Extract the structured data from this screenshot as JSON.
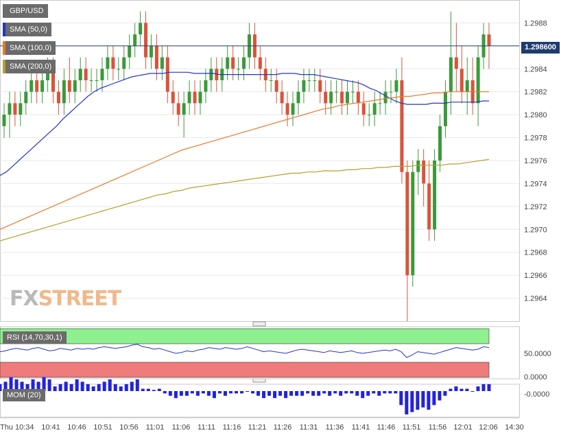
{
  "symbol": "GBP/USD",
  "last_price_label": "1.298600",
  "watermark": {
    "part1": "FX",
    "part2": "STREET"
  },
  "legends": {
    "sma50": "SMA (50,0)",
    "sma100": "SMA (100,0)",
    "sma200": "SMA (200,0)",
    "rsi": "RSI (14,70,30,1)",
    "mom": "MOM (20)"
  },
  "colors": {
    "up": "#3a9a3a",
    "down": "#d9533c",
    "sma50": "#2233cc",
    "sma100": "#e8792a",
    "sma200": "#b4a02a",
    "rsi_line": "#2233cc",
    "rsi_over": "#8ef08e",
    "rsi_under": "#f07b7b",
    "mom_bar": "#2222dd",
    "last_price": "#1f3b6f"
  },
  "chart_data": [
    {
      "type": "candlestick",
      "title": "GBP/USD",
      "ylim": [
        1.2962,
        1.299
      ],
      "y_ticks": [
        "1.2964",
        "1.2966",
        "1.2968",
        "1.2970",
        "1.2972",
        "1.2974",
        "1.2976",
        "1.2978",
        "1.2980",
        "1.2982",
        "1.2984",
        "1.2986",
        "1.2988"
      ],
      "x_ticks": [
        "Thu 10:34",
        "10:41",
        "10:46",
        "10:51",
        "10:56",
        "11:01",
        "11:06",
        "11:11",
        "11:16",
        "11:21",
        "11:26",
        "11:31",
        "11:36",
        "11:41",
        "11:46",
        "11:51",
        "11:56",
        "12:01",
        "12:06",
        "14:30"
      ],
      "last_price": 1.2986,
      "candles": [
        [
          1.2979,
          1.2981,
          1.2978,
          1.298
        ],
        [
          1.298,
          1.2982,
          1.2978,
          1.2981
        ],
        [
          1.2981,
          1.2982,
          1.2979,
          1.298
        ],
        [
          1.298,
          1.2982,
          1.2979,
          1.2981
        ],
        [
          1.2981,
          1.2983,
          1.298,
          1.2982
        ],
        [
          1.2982,
          1.2984,
          1.2981,
          1.2983
        ],
        [
          1.2983,
          1.2984,
          1.2981,
          1.2982
        ],
        [
          1.2982,
          1.2984,
          1.2981,
          1.2983
        ],
        [
          1.2983,
          1.2985,
          1.2982,
          1.2984
        ],
        [
          1.2984,
          1.2985,
          1.2981,
          1.2982
        ],
        [
          1.2982,
          1.2983,
          1.298,
          1.2981
        ],
        [
          1.2981,
          1.2984,
          1.298,
          1.2983
        ],
        [
          1.2983,
          1.2985,
          1.2981,
          1.2982
        ],
        [
          1.2982,
          1.2984,
          1.2981,
          1.2983
        ],
        [
          1.2983,
          1.2985,
          1.2982,
          1.2984
        ],
        [
          1.2984,
          1.2985,
          1.2982,
          1.2983
        ],
        [
          1.2983,
          1.2984,
          1.2982,
          1.2983
        ],
        [
          1.2983,
          1.2984,
          1.2982,
          1.2983
        ],
        [
          1.2983,
          1.2985,
          1.2982,
          1.2984
        ],
        [
          1.2984,
          1.2986,
          1.2983,
          1.2985
        ],
        [
          1.2985,
          1.2986,
          1.2983,
          1.2984
        ],
        [
          1.2984,
          1.2985,
          1.2983,
          1.2984
        ],
        [
          1.2984,
          1.2986,
          1.2983,
          1.2985
        ],
        [
          1.2985,
          1.2987,
          1.2984,
          1.2986
        ],
        [
          1.2986,
          1.2988,
          1.2985,
          1.2987
        ],
        [
          1.2987,
          1.2989,
          1.2986,
          1.2988
        ],
        [
          1.2988,
          1.2989,
          1.2984,
          1.2985
        ],
        [
          1.2985,
          1.2987,
          1.2984,
          1.2986
        ],
        [
          1.2986,
          1.2987,
          1.2983,
          1.2984
        ],
        [
          1.2984,
          1.2986,
          1.2983,
          1.2985
        ],
        [
          1.2985,
          1.2986,
          1.2981,
          1.2982
        ],
        [
          1.2982,
          1.2983,
          1.298,
          1.2981
        ],
        [
          1.2981,
          1.2982,
          1.2979,
          1.298
        ],
        [
          1.298,
          1.2982,
          1.2978,
          1.2981
        ],
        [
          1.2981,
          1.2983,
          1.298,
          1.2982
        ],
        [
          1.2982,
          1.2983,
          1.298,
          1.2981
        ],
        [
          1.2981,
          1.2983,
          1.298,
          1.2982
        ],
        [
          1.2982,
          1.2984,
          1.2981,
          1.2983
        ],
        [
          1.2983,
          1.2985,
          1.2982,
          1.2984
        ],
        [
          1.2984,
          1.2985,
          1.2982,
          1.2983
        ],
        [
          1.2983,
          1.2985,
          1.2982,
          1.2984
        ],
        [
          1.2984,
          1.2986,
          1.2983,
          1.2985
        ],
        [
          1.2985,
          1.2986,
          1.2983,
          1.2984
        ],
        [
          1.2984,
          1.2985,
          1.2983,
          1.2984
        ],
        [
          1.2984,
          1.2986,
          1.2983,
          1.2985
        ],
        [
          1.2985,
          1.2988,
          1.2984,
          1.2987
        ],
        [
          1.2987,
          1.2988,
          1.2984,
          1.2985
        ],
        [
          1.2985,
          1.2986,
          1.2983,
          1.2984
        ],
        [
          1.2984,
          1.2985,
          1.2982,
          1.2983
        ],
        [
          1.2983,
          1.2984,
          1.2982,
          1.2983
        ],
        [
          1.2983,
          1.2984,
          1.2981,
          1.2982
        ],
        [
          1.2982,
          1.2983,
          1.298,
          1.2981
        ],
        [
          1.2981,
          1.2982,
          1.2979,
          1.298
        ],
        [
          1.298,
          1.2982,
          1.2979,
          1.2981
        ],
        [
          1.2981,
          1.2983,
          1.298,
          1.2982
        ],
        [
          1.2982,
          1.2984,
          1.2981,
          1.2983
        ],
        [
          1.2983,
          1.2984,
          1.2982,
          1.2983
        ],
        [
          1.2983,
          1.2984,
          1.2982,
          1.2983
        ],
        [
          1.2983,
          1.2984,
          1.2981,
          1.2982
        ],
        [
          1.2982,
          1.2983,
          1.298,
          1.2981
        ],
        [
          1.2981,
          1.2983,
          1.298,
          1.2982
        ],
        [
          1.2982,
          1.2983,
          1.2981,
          1.2982
        ],
        [
          1.2982,
          1.2983,
          1.298,
          1.2981
        ],
        [
          1.2981,
          1.2983,
          1.298,
          1.2982
        ],
        [
          1.2982,
          1.2983,
          1.2981,
          1.2982
        ],
        [
          1.2982,
          1.2983,
          1.298,
          1.2981
        ],
        [
          1.2981,
          1.2982,
          1.2979,
          1.298
        ],
        [
          1.298,
          1.2981,
          1.2979,
          1.298
        ],
        [
          1.298,
          1.2982,
          1.2979,
          1.2981
        ],
        [
          1.2981,
          1.2982,
          1.298,
          1.2981
        ],
        [
          1.2981,
          1.2983,
          1.298,
          1.2982
        ],
        [
          1.2982,
          1.2983,
          1.2981,
          1.2982
        ],
        [
          1.2982,
          1.2984,
          1.2981,
          1.2983
        ],
        [
          1.2983,
          1.2985,
          1.2974,
          1.2975
        ],
        [
          1.2975,
          1.2976,
          1.2962,
          1.2966
        ],
        [
          1.2966,
          1.2976,
          1.2965,
          1.2975
        ],
        [
          1.2975,
          1.2977,
          1.2973,
          1.2976
        ],
        [
          1.2976,
          1.2977,
          1.2972,
          1.2974
        ],
        [
          1.2974,
          1.2976,
          1.2969,
          1.297
        ],
        [
          1.297,
          1.2977,
          1.2969,
          1.2976
        ],
        [
          1.2976,
          1.298,
          1.2975,
          1.2979
        ],
        [
          1.2979,
          1.2983,
          1.2978,
          1.2982
        ],
        [
          1.2982,
          1.2989,
          1.298,
          1.2985
        ],
        [
          1.2985,
          1.2988,
          1.2982,
          1.2984
        ],
        [
          1.2984,
          1.2986,
          1.2981,
          1.2982
        ],
        [
          1.2982,
          1.2985,
          1.298,
          1.2983
        ],
        [
          1.2983,
          1.2985,
          1.298,
          1.2981
        ],
        [
          1.2981,
          1.2986,
          1.2979,
          1.2985
        ],
        [
          1.2985,
          1.2988,
          1.2984,
          1.2987
        ],
        [
          1.2987,
          1.2988,
          1.2984,
          1.2986
        ]
      ],
      "series": [
        {
          "name": "SMA (50,0)",
          "values": [
            1.29747,
            1.2975,
            1.29755,
            1.2976,
            1.29765,
            1.2977,
            1.29775,
            1.2978,
            1.29785,
            1.2979,
            1.29796,
            1.29801,
            1.29806,
            1.29811,
            1.29816,
            1.2982,
            1.29823,
            1.29825,
            1.29827,
            1.29829,
            1.29831,
            1.29833,
            1.29834,
            1.29835,
            1.29836,
            1.29836,
            1.29836,
            1.29837,
            1.29837,
            1.29837,
            1.29837,
            1.29836,
            1.29836,
            1.29836,
            1.29836,
            1.29835,
            1.29835,
            1.29835,
            1.29835,
            1.29835,
            1.29835,
            1.29835,
            1.29835,
            1.29835,
            1.29835,
            1.29836,
            1.29836,
            1.29836,
            1.29835,
            1.29835,
            1.29835,
            1.29834,
            1.29833,
            1.29832,
            1.29831,
            1.2983,
            1.29829,
            1.29828,
            1.29826,
            1.29823,
            1.29821,
            1.29818,
            1.29815,
            1.29812,
            1.2981,
            1.29809,
            1.29809,
            1.29809,
            1.29809,
            1.2981,
            1.2981,
            1.2981,
            1.29811,
            1.29811,
            1.29811,
            1.29811,
            1.29811,
            1.29812,
            1.29812
          ]
        },
        {
          "name": "SMA (100,0)",
          "values": [
            1.297,
            1.29703,
            1.29706,
            1.29709,
            1.29712,
            1.29715,
            1.29718,
            1.29721,
            1.29724,
            1.29727,
            1.2973,
            1.29733,
            1.29736,
            1.29739,
            1.29742,
            1.29745,
            1.29748,
            1.29751,
            1.29754,
            1.29757,
            1.2976,
            1.29763,
            1.29766,
            1.29769,
            1.29771,
            1.29773,
            1.29775,
            1.29777,
            1.29779,
            1.29781,
            1.29783,
            1.29785,
            1.29787,
            1.29789,
            1.29791,
            1.29793,
            1.29795,
            1.29797,
            1.29799,
            1.29801,
            1.29803,
            1.29805,
            1.29806,
            1.29808,
            1.29809,
            1.2981,
            1.29811,
            1.29812,
            1.29813,
            1.29814,
            1.29815,
            1.29816,
            1.29816,
            1.29817,
            1.29818,
            1.29819,
            1.29819,
            1.2982,
            1.2982,
            1.2982,
            1.2982,
            1.2982,
            1.2982
          ]
        },
        {
          "name": "SMA (200,0)",
          "values": [
            1.2969,
            1.29692,
            1.29694,
            1.29696,
            1.29698,
            1.297,
            1.29702,
            1.29704,
            1.29706,
            1.29708,
            1.2971,
            1.29712,
            1.29714,
            1.29716,
            1.29718,
            1.2972,
            1.29722,
            1.29724,
            1.29726,
            1.29728,
            1.2973,
            1.29731,
            1.29733,
            1.29734,
            1.29736,
            1.29737,
            1.29738,
            1.29739,
            1.2974,
            1.29741,
            1.29742,
            1.29743,
            1.29744,
            1.29745,
            1.29746,
            1.29747,
            1.29748,
            1.29749,
            1.29749,
            1.2975,
            1.2975,
            1.29751,
            1.29751,
            1.29751,
            1.29752,
            1.29752,
            1.29753,
            1.29753,
            1.29754,
            1.29754,
            1.29755,
            1.29755,
            1.29755,
            1.29756,
            1.29756,
            1.29756,
            1.29756,
            1.29757,
            1.29757,
            1.29758,
            1.29759,
            1.2976,
            1.29761
          ]
        }
      ]
    },
    {
      "type": "line",
      "title": "RSI (14,70,30,1)",
      "ylim": [
        0,
        100
      ],
      "y_ticks": [
        "50.0000",
        "0.0000"
      ],
      "overbought": 70,
      "oversold": 30,
      "values": [
        52,
        53,
        55,
        56,
        55,
        54,
        56,
        57,
        55,
        53,
        54,
        56,
        55,
        54,
        56,
        55,
        56,
        55,
        57,
        58,
        57,
        56,
        57,
        58,
        60,
        61,
        58,
        57,
        55,
        56,
        54,
        52,
        50,
        51,
        53,
        52,
        54,
        55,
        57,
        56,
        55,
        57,
        56,
        55,
        56,
        58,
        56,
        54,
        52,
        53,
        52,
        51,
        50,
        52,
        54,
        55,
        54,
        53,
        52,
        51,
        53,
        52,
        51,
        52,
        53,
        51,
        50,
        51,
        52,
        53,
        54,
        53,
        55,
        52,
        45,
        48,
        52,
        51,
        50,
        49,
        51,
        53,
        55,
        57,
        56,
        55,
        54,
        55,
        58,
        57
      ]
    },
    {
      "type": "bar",
      "title": "MOM (20)",
      "y_ticks": [
        "-0.0000"
      ],
      "values": [
        0.3,
        0.4,
        0.6,
        0.5,
        0.4,
        0.3,
        0.5,
        0.4,
        0.6,
        0.5,
        0.2,
        0.3,
        0.4,
        0.3,
        0.5,
        0.4,
        0.3,
        0.2,
        0.3,
        0.4,
        0.5,
        0.3,
        0.2,
        0.3,
        0.4,
        0.5,
        0.1,
        0.1,
        0.05,
        0.1,
        -0.1,
        -0.2,
        -0.3,
        -0.2,
        -0.2,
        -0.1,
        -0.2,
        -0.1,
        -0.2,
        -0.3,
        -0.1,
        -0.2,
        -0.1,
        -0.1,
        -0.1,
        0.0,
        -0.1,
        -0.2,
        -0.3,
        -0.2,
        -0.3,
        -0.2,
        -0.3,
        -0.2,
        -0.2,
        -0.2,
        -0.1,
        -0.2,
        -0.2,
        -0.1,
        -0.2,
        -0.1,
        -0.2,
        -0.1,
        -0.1,
        -0.2,
        -0.3,
        -0.2,
        -0.1,
        -0.2,
        -0.1,
        -0.1,
        -0.1,
        -0.6,
        -1.0,
        -0.9,
        -0.8,
        -0.7,
        -0.8,
        -0.6,
        -0.4,
        -0.2,
        0.1,
        0.2,
        0.1,
        0.1,
        0.0,
        0.2,
        0.3,
        0.3
      ]
    }
  ]
}
